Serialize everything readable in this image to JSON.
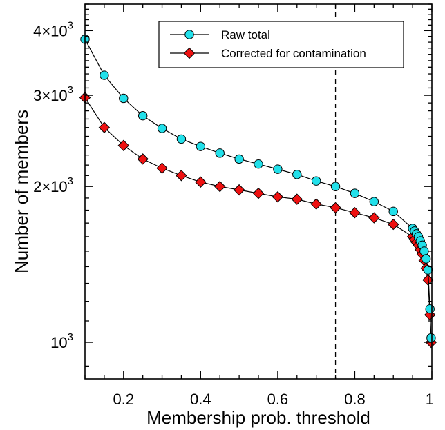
{
  "chart_data": {
    "type": "line",
    "xlabel": "Membership prob. threshold",
    "ylabel": "Number of members",
    "xlim": [
      0.1,
      1.0
    ],
    "ylim": [
      850,
      4500
    ],
    "x_ticks": [
      {
        "value": 0.2,
        "label": "0.2"
      },
      {
        "value": 0.4,
        "label": "0.4"
      },
      {
        "value": 0.6,
        "label": "0.6"
      },
      {
        "value": 0.8,
        "label": "0.8"
      },
      {
        "value": 1.0,
        "label": "1"
      }
    ],
    "y_ticks": [
      {
        "value": 1000,
        "mantissa": "",
        "base": "10",
        "exp": "3"
      },
      {
        "value": 2000,
        "mantissa": "2×",
        "base": "10",
        "exp": "3"
      },
      {
        "value": 3000,
        "mantissa": "3×",
        "base": "10",
        "exp": "3"
      },
      {
        "value": 4000,
        "mantissa": "4×",
        "base": "10",
        "exp": "3"
      }
    ],
    "vline": {
      "x": 0.75,
      "style": "dashed"
    },
    "legend_placement": "top-right",
    "series": [
      {
        "name": "Raw total",
        "marker": "circle",
        "color": "#22e0ea",
        "points": [
          [
            0.1,
            3850
          ],
          [
            0.15,
            3280
          ],
          [
            0.2,
            2960
          ],
          [
            0.25,
            2740
          ],
          [
            0.3,
            2590
          ],
          [
            0.35,
            2470
          ],
          [
            0.4,
            2390
          ],
          [
            0.45,
            2320
          ],
          [
            0.5,
            2260
          ],
          [
            0.55,
            2210
          ],
          [
            0.6,
            2160
          ],
          [
            0.65,
            2110
          ],
          [
            0.7,
            2050
          ],
          [
            0.75,
            2000
          ],
          [
            0.8,
            1940
          ],
          [
            0.85,
            1870
          ],
          [
            0.9,
            1790
          ],
          [
            0.95,
            1660
          ],
          [
            0.955,
            1640
          ],
          [
            0.96,
            1620
          ],
          [
            0.965,
            1600
          ],
          [
            0.97,
            1570
          ],
          [
            0.975,
            1540
          ],
          [
            0.98,
            1500
          ],
          [
            0.985,
            1450
          ],
          [
            0.99,
            1380
          ],
          [
            0.995,
            1160
          ],
          [
            0.998,
            1020
          ]
        ]
      },
      {
        "name": "Corrected for contamination",
        "marker": "diamond",
        "color": "#ee1111",
        "points": [
          [
            0.1,
            2970
          ],
          [
            0.15,
            2600
          ],
          [
            0.2,
            2400
          ],
          [
            0.25,
            2260
          ],
          [
            0.3,
            2170
          ],
          [
            0.35,
            2100
          ],
          [
            0.4,
            2040
          ],
          [
            0.45,
            2000
          ],
          [
            0.5,
            1970
          ],
          [
            0.55,
            1940
          ],
          [
            0.6,
            1910
          ],
          [
            0.65,
            1890
          ],
          [
            0.7,
            1850
          ],
          [
            0.75,
            1820
          ],
          [
            0.8,
            1780
          ],
          [
            0.85,
            1740
          ],
          [
            0.9,
            1690
          ],
          [
            0.95,
            1600
          ],
          [
            0.955,
            1580
          ],
          [
            0.96,
            1560
          ],
          [
            0.965,
            1540
          ],
          [
            0.97,
            1510
          ],
          [
            0.975,
            1480
          ],
          [
            0.98,
            1440
          ],
          [
            0.985,
            1390
          ],
          [
            0.99,
            1320
          ],
          [
            0.995,
            1130
          ],
          [
            0.998,
            1000
          ]
        ]
      }
    ]
  }
}
